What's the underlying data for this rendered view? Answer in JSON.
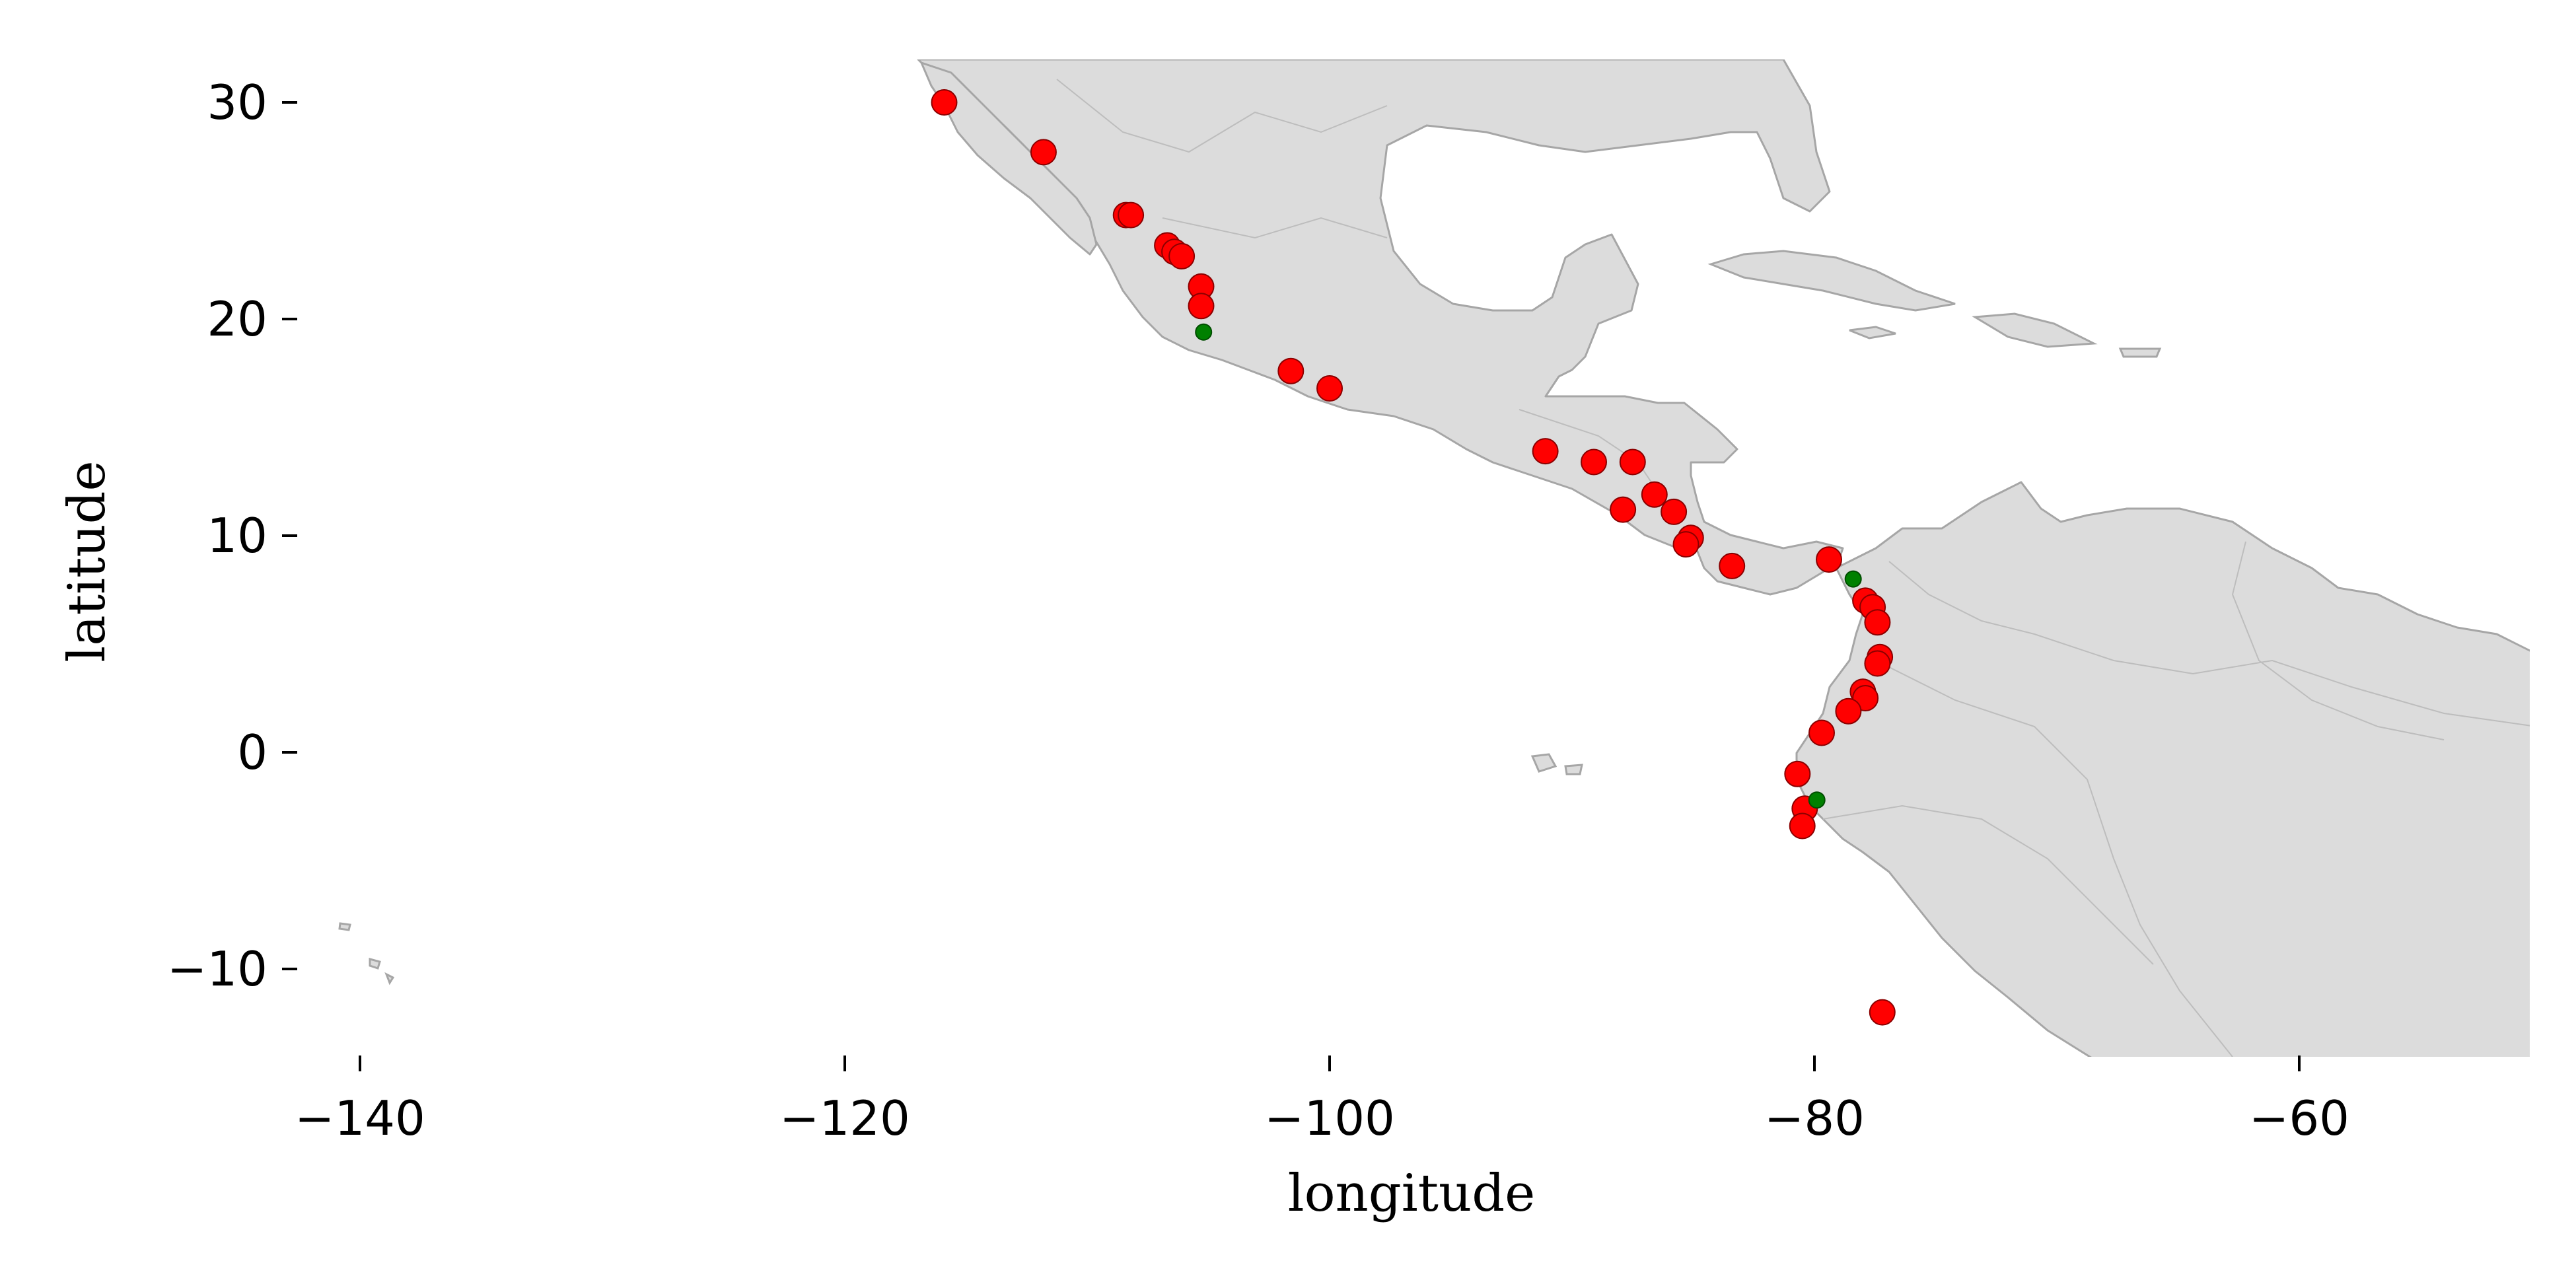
{
  "map": {
    "xlabel": "longitude",
    "ylabel": "latitude",
    "xlim": [
      -142.5,
      -50
    ],
    "ylim": [
      -14.3,
      32
    ],
    "xticks": [
      -140,
      -120,
      -100,
      -80,
      -60
    ],
    "yticks": [
      30,
      20,
      10,
      0,
      -10
    ],
    "xtick_labels": [
      "−140",
      "−120",
      "−100",
      "−80",
      "−60"
    ],
    "ytick_labels": [
      "30",
      "20",
      "10",
      "0",
      "−10"
    ],
    "colors": {
      "land": "#dcdcdc",
      "coast": "#a6a6a6",
      "red_marker": "#ff0000",
      "green_marker": "#008000"
    }
  },
  "chart_data": {
    "type": "scatter",
    "title": "",
    "xlabel": "longitude",
    "ylabel": "latitude",
    "xlim": [
      -142.5,
      -50
    ],
    "ylim": [
      -14.3,
      32
    ],
    "grid": false,
    "series": [
      {
        "color": "#ff0000",
        "points": [
          [
            -115.9,
            30.0
          ],
          [
            -111.8,
            27.7
          ],
          [
            -108.4,
            24.8
          ],
          [
            -108.2,
            24.8
          ],
          [
            -106.7,
            23.4
          ],
          [
            -106.4,
            23.1
          ],
          [
            -106.1,
            22.9
          ],
          [
            -105.3,
            21.5
          ],
          [
            -105.3,
            20.6
          ],
          [
            -101.6,
            17.6
          ],
          [
            -100.0,
            16.8
          ],
          [
            -91.1,
            13.9
          ],
          [
            -89.1,
            13.4
          ],
          [
            -87.5,
            13.4
          ],
          [
            -86.6,
            11.9
          ],
          [
            -87.9,
            11.2
          ],
          [
            -85.8,
            11.1
          ],
          [
            -85.1,
            9.9
          ],
          [
            -85.3,
            9.6
          ],
          [
            -83.4,
            8.6
          ],
          [
            -79.4,
            8.9
          ],
          [
            -77.9,
            7.0
          ],
          [
            -77.6,
            6.7
          ],
          [
            -77.4,
            6.0
          ],
          [
            -77.3,
            4.4
          ],
          [
            -77.4,
            4.1
          ],
          [
            -78.0,
            2.8
          ],
          [
            -77.9,
            2.5
          ],
          [
            -78.6,
            1.9
          ],
          [
            -79.7,
            0.9
          ],
          [
            -80.7,
            -1.0
          ],
          [
            -80.4,
            -2.6
          ],
          [
            -80.5,
            -3.4
          ],
          [
            -77.2,
            -12.0
          ]
        ]
      },
      {
        "color": "#008000",
        "points": [
          [
            -105.2,
            19.4
          ],
          [
            -78.4,
            8.0
          ],
          [
            -79.9,
            -2.2
          ]
        ]
      }
    ]
  }
}
